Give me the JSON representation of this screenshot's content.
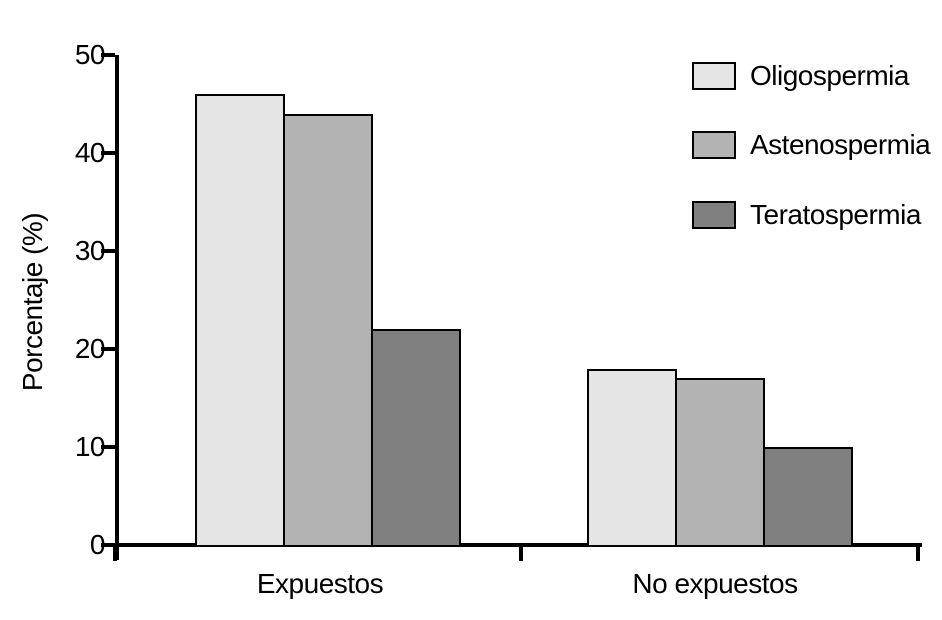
{
  "chart_data": {
    "type": "bar",
    "title": "",
    "xlabel": "",
    "ylabel": "Porcentaje (%)",
    "categories": [
      "Expuestos",
      "No expuestos"
    ],
    "series": [
      {
        "name": "Oligospermia",
        "color": "#e5e5e5",
        "values": [
          46,
          18
        ]
      },
      {
        "name": "Astenospermia",
        "color": "#b3b3b3",
        "values": [
          44,
          17
        ]
      },
      {
        "name": "Teratospermia",
        "color": "#808080",
        "values": [
          22,
          10
        ]
      }
    ],
    "ylim": [
      0,
      50
    ],
    "yticks": [
      0,
      10,
      20,
      30,
      40,
      50
    ],
    "grid": false,
    "legend_position": "upper right",
    "bar_edge_color": "#000000",
    "axis_color": "#000000",
    "background_color": "#ffffff"
  }
}
